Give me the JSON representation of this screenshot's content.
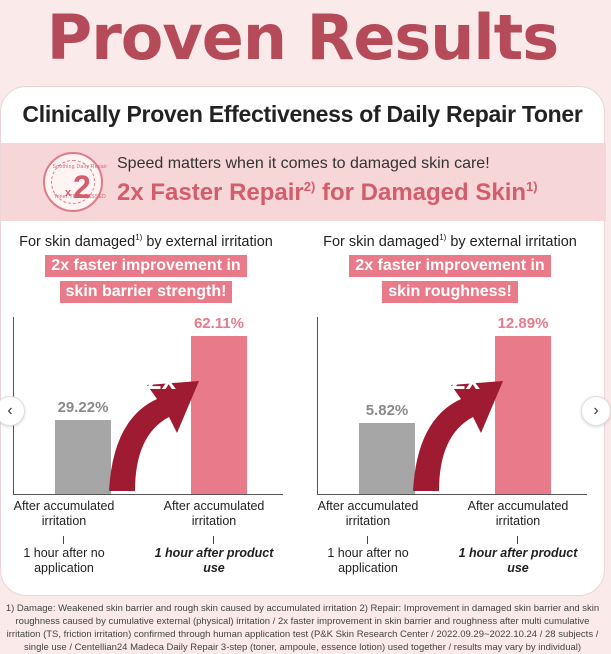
{
  "hero": {
    "title": "Proven Results"
  },
  "card": {
    "title": "Clinically Proven Effectiveness of Daily Repair Toner",
    "badge": {
      "multiplier": "2",
      "prefix": "x",
      "ring_top": "Soothing Daily Repair",
      "ring_bottom": "Toner TIME PASSED"
    },
    "subheadline": "Speed matters when it comes to damaged skin care!",
    "headline_a": "2x Faster Repair",
    "headline_a_sup": "2)",
    "headline_b": " for Damaged Skin",
    "headline_b_sup": "1)"
  },
  "panels": [
    {
      "heading_a": "For skin damaged",
      "heading_sup": "1)",
      "heading_b": " by external irritation",
      "highlight_1": "2x faster improvement in",
      "highlight_2": "skin barrier strength!",
      "arrow_label": "2x",
      "before": {
        "value_label": "29.22%",
        "label": "After accumulated irritation",
        "condition": "1 hour after no application"
      },
      "after": {
        "value_label": "62.11%",
        "label": "After accumulated irritation",
        "condition": "1 hour after product use"
      }
    },
    {
      "heading_a": "For skin damaged",
      "heading_sup": "1)",
      "heading_b": " by external irritation",
      "highlight_1": "2x faster improvement in",
      "highlight_2": "skin roughness!",
      "arrow_label": "2x",
      "before": {
        "value_label": "5.82%",
        "label": "After accumulated irritation",
        "condition": "1 hour after no application"
      },
      "after": {
        "value_label": "12.89%",
        "label": "After accumulated irritation",
        "condition": "1 hour after product use"
      }
    }
  ],
  "chart_data": [
    {
      "type": "bar",
      "categories": [
        "After accumulated irritation / 1 hour after no application",
        "After accumulated irritation / 1 hour after product use"
      ],
      "values": [
        29.22,
        62.11
      ],
      "ylim": [
        0,
        70
      ]
    },
    {
      "type": "bar",
      "categories": [
        "After accumulated irritation / 1 hour after no application",
        "After accumulated irritation / 1 hour after product use"
      ],
      "values": [
        5.82,
        12.89
      ],
      "ylim": [
        0,
        14.5
      ]
    }
  ],
  "nav": {
    "prev_icon": "‹",
    "next_icon": "›"
  },
  "footnote": "1) Damage: Weakened skin barrier and rough skin caused by accumulated irritation 2) Repair: Improvement in damaged skin barrier and skin roughness caused by cumulative external (physical) irritation / 2x faster improvement in skin barrier and roughness after multi cumulative irritation (TS, friction irritation) confirmed through human application test (P&K Skin Research Center / 2022.09.29~2022.10.24 / 28 subjects / single use / Centellian24 Madeca Daily Repair 3-step (toner, ampoule, essence lotion) used together / results may vary by individual)",
  "colors": {
    "accent": "#d35d6b",
    "bar_after": "#e87a8a",
    "bar_before": "#a6a6a6",
    "arrow": "#9e1b32"
  }
}
